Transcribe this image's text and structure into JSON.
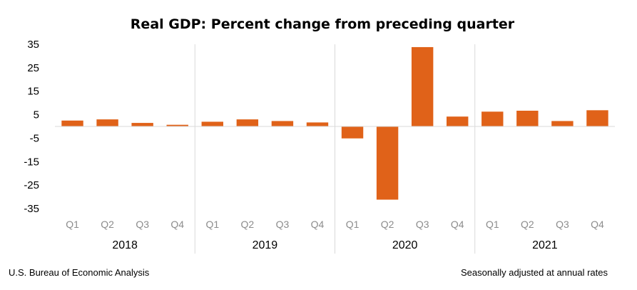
{
  "chart_data": {
    "type": "bar",
    "title": "Real GDP:  Percent change from preceding quarter",
    "years": [
      "2018",
      "2019",
      "2020",
      "2021"
    ],
    "quarters": [
      "Q1",
      "Q2",
      "Q3",
      "Q4"
    ],
    "categories": [
      "2018 Q1",
      "2018 Q2",
      "2018 Q3",
      "2018 Q4",
      "2019 Q1",
      "2019 Q2",
      "2019 Q3",
      "2019 Q4",
      "2020 Q1",
      "2020 Q2",
      "2020 Q3",
      "2020 Q4",
      "2021 Q1",
      "2021 Q2",
      "2021 Q3",
      "2021 Q4"
    ],
    "values": [
      2.5,
      3.0,
      1.5,
      0.7,
      2.0,
      3.0,
      2.3,
      1.7,
      -5.1,
      -31.2,
      33.8,
      4.2,
      6.3,
      6.7,
      2.3,
      6.9
    ],
    "yticks": [
      35,
      25,
      15,
      5,
      -5,
      -15,
      -25,
      -35
    ],
    "ylim": [
      -35,
      35
    ],
    "bar_color": "#e06219",
    "grid": false,
    "xlabel": "",
    "ylabel": ""
  },
  "footer": {
    "source": "U.S. Bureau of Economic Analysis",
    "note": "Seasonally adjusted at annual rates"
  }
}
